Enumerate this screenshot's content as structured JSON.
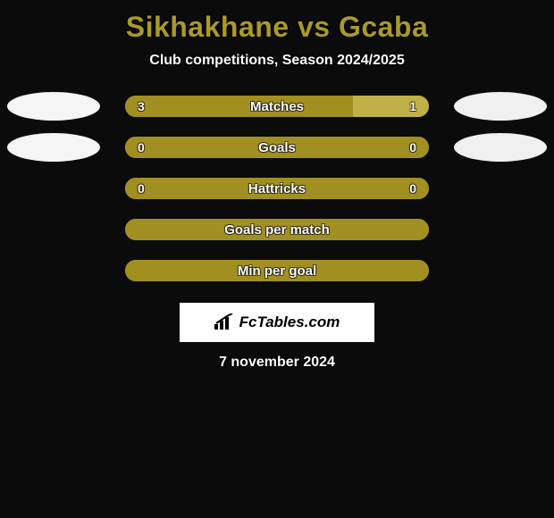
{
  "background_color": "#0b0b0b",
  "title": {
    "color": "#aa9a28",
    "parts": {
      "player1": "Sikhakhane",
      "vs": "vs",
      "player2": "Gcaba"
    },
    "fontsize_pt": 24
  },
  "subtitle": {
    "text": "Club competitions, Season 2024/2025",
    "color": "#ffffff",
    "fontsize_pt": 12
  },
  "bar_style": {
    "left_color": "#a28f22",
    "mid_color": "#bfb047",
    "track_color": "#a28f22",
    "label_color": "#ffffff",
    "value_color": "#ffffff",
    "fontsize_pt": 11
  },
  "ellipse": {
    "left_fill": "#f5f5f5",
    "right_fill": "#f0f0f0"
  },
  "rows": [
    {
      "label": "Matches",
      "left_value": "3",
      "right_value": "1",
      "left_pct": 75,
      "right_pct": 25,
      "has_values": true,
      "ellipse": true
    },
    {
      "label": "Goals",
      "left_value": "0",
      "right_value": "0",
      "left_pct": 100,
      "right_pct": 0,
      "has_values": true,
      "ellipse": true
    },
    {
      "label": "Hattricks",
      "left_value": "0",
      "right_value": "0",
      "left_pct": 100,
      "right_pct": 0,
      "has_values": true,
      "ellipse": false
    },
    {
      "label": "Goals per match",
      "left_value": "",
      "right_value": "",
      "left_pct": 100,
      "right_pct": 0,
      "has_values": false,
      "ellipse": false
    },
    {
      "label": "Min per goal",
      "left_value": "",
      "right_value": "",
      "left_pct": 100,
      "right_pct": 0,
      "has_values": false,
      "ellipse": false
    }
  ],
  "logo": {
    "text": "FcTables.com",
    "icon": "bars-icon",
    "box_bg": "#ffffff",
    "text_color": "#000000"
  },
  "date": {
    "text": "7 november 2024",
    "color": "#ffffff",
    "fontsize_pt": 12
  }
}
